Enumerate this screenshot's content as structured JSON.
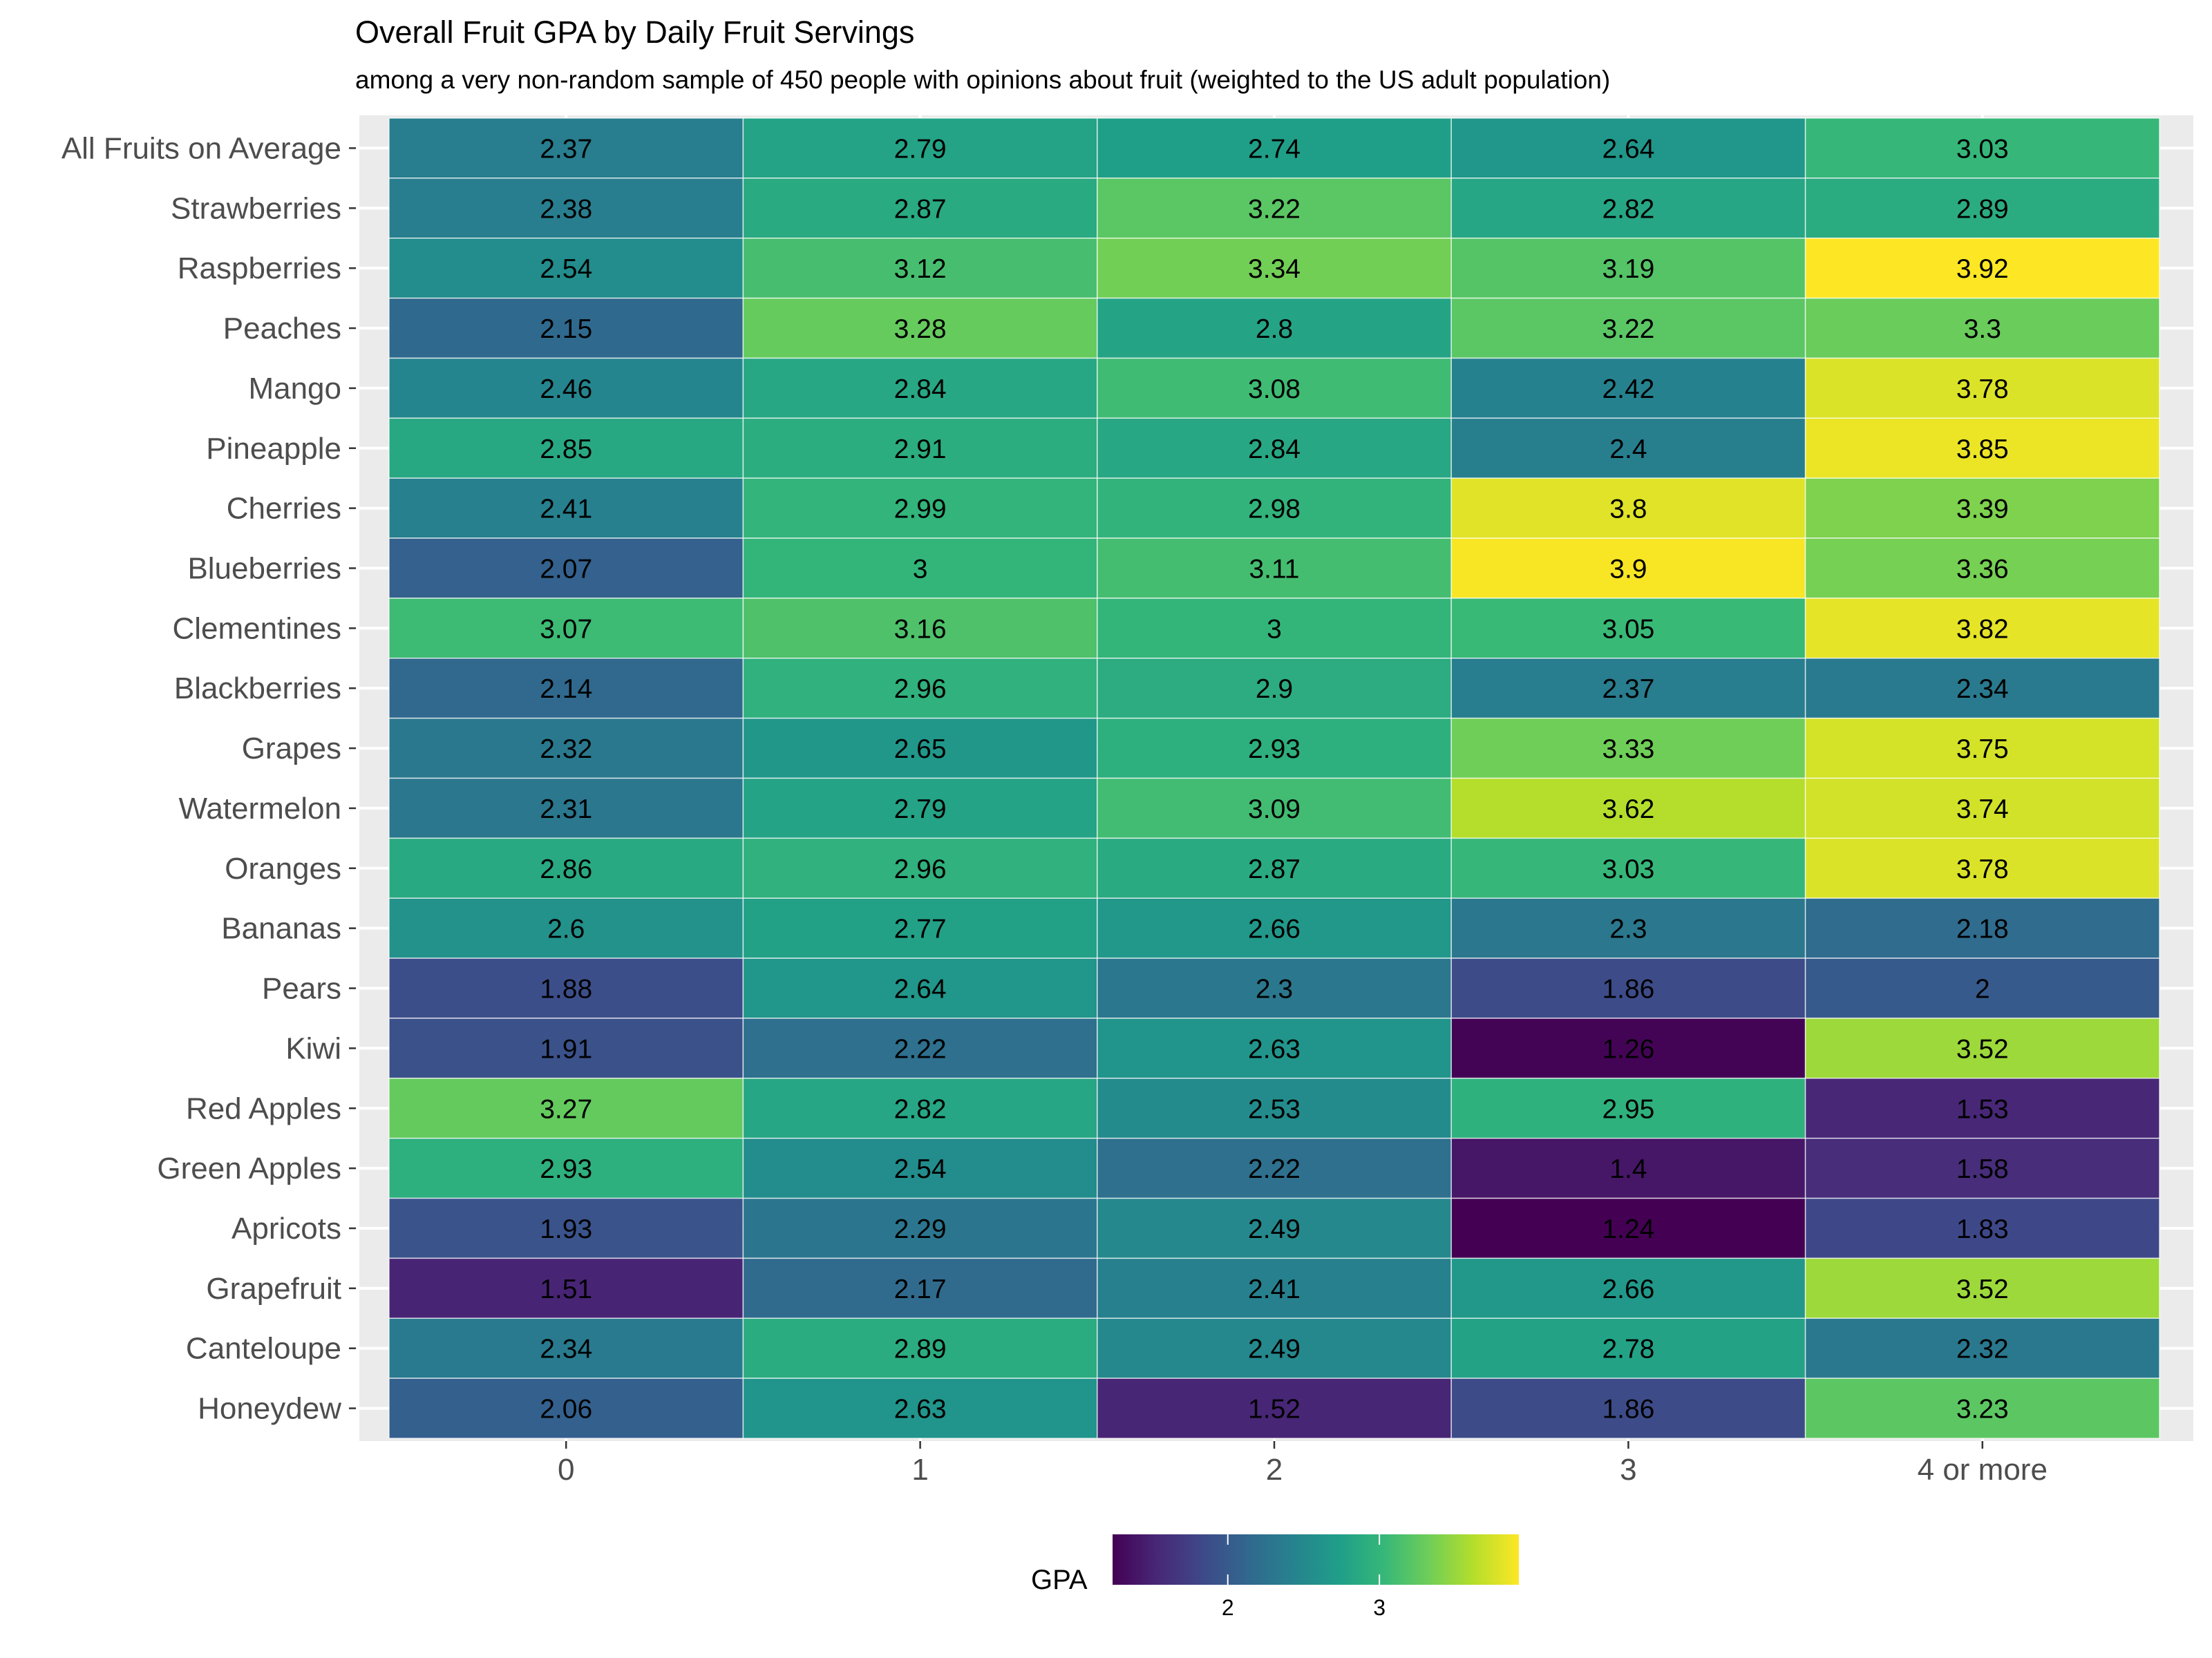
{
  "chart_data": {
    "type": "heatmap",
    "title": "Overall Fruit GPA by Daily Fruit Servings",
    "subtitle": "among a very non-random sample of 450 people with opinions about fruit (weighted to the US adult population)",
    "xlabel": "",
    "ylabel": "",
    "x_categories": [
      "0",
      "1",
      "2",
      "3",
      "4 or more"
    ],
    "y_categories": [
      "All Fruits on Average",
      "Strawberries",
      "Raspberries",
      "Peaches",
      "Mango",
      "Pineapple",
      "Cherries",
      "Blueberries",
      "Clementines",
      "Blackberries",
      "Grapes",
      "Watermelon",
      "Oranges",
      "Bananas",
      "Pears",
      "Kiwi",
      "Red Apples",
      "Green Apples",
      "Apricots",
      "Grapefruit",
      "Canteloupe",
      "Honeydew"
    ],
    "values": [
      [
        2.37,
        2.79,
        2.74,
        2.64,
        3.03
      ],
      [
        2.38,
        2.87,
        3.22,
        2.82,
        2.89
      ],
      [
        2.54,
        3.12,
        3.34,
        3.19,
        3.92
      ],
      [
        2.15,
        3.28,
        2.8,
        3.22,
        3.3
      ],
      [
        2.46,
        2.84,
        3.08,
        2.42,
        3.78
      ],
      [
        2.85,
        2.91,
        2.84,
        2.4,
        3.85
      ],
      [
        2.41,
        2.99,
        2.98,
        3.8,
        3.39
      ],
      [
        2.07,
        3,
        3.11,
        3.9,
        3.36
      ],
      [
        3.07,
        3.16,
        3,
        3.05,
        3.82
      ],
      [
        2.14,
        2.96,
        2.9,
        2.37,
        2.34
      ],
      [
        2.32,
        2.65,
        2.93,
        3.33,
        3.75
      ],
      [
        2.31,
        2.79,
        3.09,
        3.62,
        3.74
      ],
      [
        2.86,
        2.96,
        2.87,
        3.03,
        3.78
      ],
      [
        2.6,
        2.77,
        2.66,
        2.3,
        2.18
      ],
      [
        1.88,
        2.64,
        2.3,
        1.86,
        2
      ],
      [
        1.91,
        2.22,
        2.63,
        1.26,
        3.52
      ],
      [
        3.27,
        2.82,
        2.53,
        2.95,
        1.53
      ],
      [
        2.93,
        2.54,
        2.22,
        1.4,
        1.58
      ],
      [
        1.93,
        2.29,
        2.49,
        1.24,
        1.83
      ],
      [
        1.51,
        2.17,
        2.41,
        2.66,
        3.52
      ],
      [
        2.34,
        2.89,
        2.49,
        2.78,
        2.32
      ],
      [
        2.06,
        2.63,
        1.52,
        1.86,
        3.23
      ]
    ],
    "color_scale": {
      "name": "viridis",
      "domain": [
        1.24,
        3.92
      ],
      "stops": [
        "#440154",
        "#482878",
        "#3e4989",
        "#31688e",
        "#26828e",
        "#1f9e89",
        "#35b779",
        "#6ece58",
        "#b5de2b",
        "#fde725"
      ]
    },
    "legend": {
      "title": "GPA",
      "ticks": [
        2,
        3
      ],
      "position": "bottom"
    },
    "grid": true
  }
}
